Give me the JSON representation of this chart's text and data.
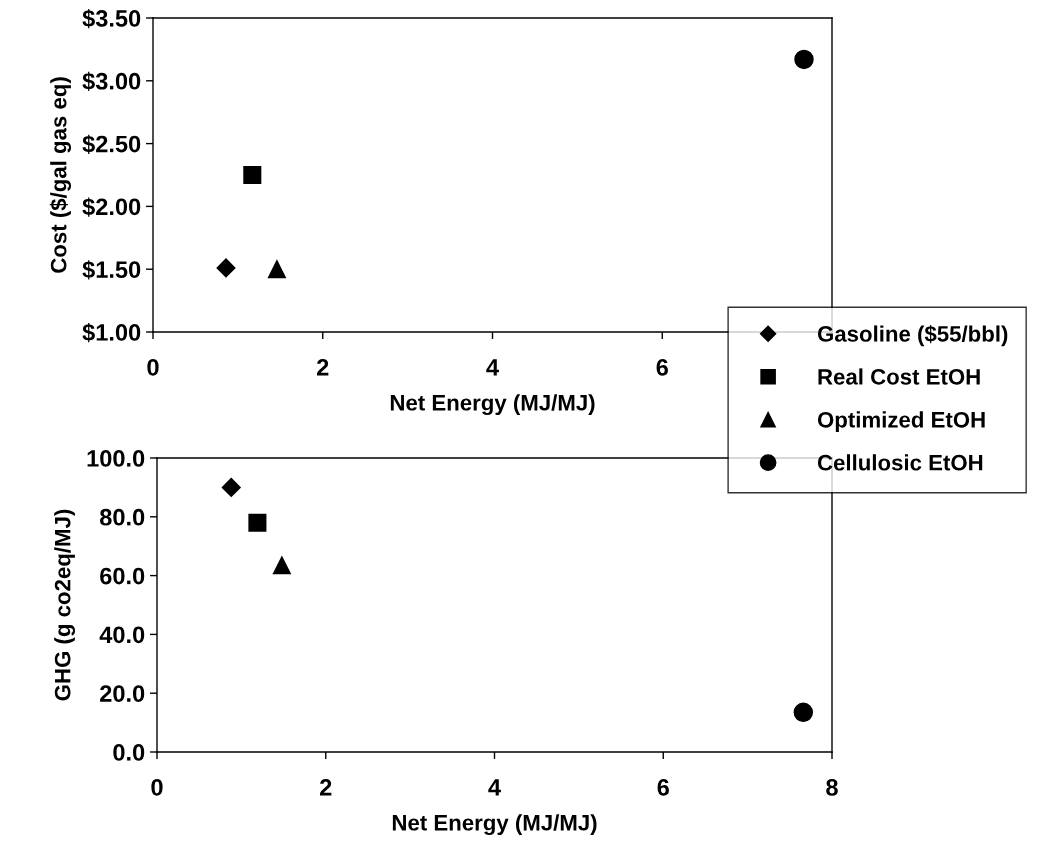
{
  "chart_data": [
    {
      "type": "scatter",
      "xlabel": "Net Energy (MJ/MJ)",
      "ylabel": "Cost ($/gal gas eq)",
      "xlim": [
        0,
        8
      ],
      "xticks": [
        0,
        2,
        4,
        6
      ],
      "ylim": [
        1.0,
        3.5
      ],
      "yticks": [
        {
          "value": 1.0,
          "label": "$1.00"
        },
        {
          "value": 1.5,
          "label": "$1.50"
        },
        {
          "value": 2.0,
          "label": "$2.00"
        },
        {
          "value": 2.5,
          "label": "$2.50"
        },
        {
          "value": 3.0,
          "label": "$3.00"
        },
        {
          "value": 3.5,
          "label": "$3.50"
        }
      ],
      "legend": "right",
      "grid": false,
      "series": [
        {
          "name": "Gasoline ($55/bbl)",
          "color": "#000000",
          "marker": "diamond",
          "x": [
            0.86
          ],
          "values": [
            1.51
          ]
        },
        {
          "name": "Real Cost EtOH",
          "color": "#000000",
          "marker": "square",
          "x": [
            1.17
          ],
          "values": [
            2.25
          ]
        },
        {
          "name": "Optimized EtOH",
          "color": "#000000",
          "marker": "triangle",
          "x": [
            1.46
          ],
          "values": [
            1.5
          ]
        },
        {
          "name": "Cellulosic EtOH",
          "color": "#000000",
          "marker": "circle",
          "x": [
            7.67
          ],
          "values": [
            3.17
          ]
        }
      ]
    },
    {
      "type": "scatter",
      "xlabel": "Net Energy (MJ/MJ)",
      "ylabel": "GHG (g co2eq/MJ)",
      "xlim": [
        0,
        8
      ],
      "xticks": [
        0,
        2,
        4,
        6,
        8
      ],
      "ylim": [
        0,
        100
      ],
      "yticks": [
        {
          "value": 0,
          "label": "0.0"
        },
        {
          "value": 20,
          "label": "20.0"
        },
        {
          "value": 40,
          "label": "40.0"
        },
        {
          "value": 60,
          "label": "60.0"
        },
        {
          "value": 80,
          "label": "80.0"
        },
        {
          "value": 100,
          "label": "100.0"
        }
      ],
      "grid": false,
      "series": [
        {
          "color": "#000000",
          "marker": "diamond",
          "x": [
            0.88
          ],
          "values": [
            90
          ]
        },
        {
          "color": "#000000",
          "marker": "square",
          "x": [
            1.19
          ],
          "values": [
            78
          ]
        },
        {
          "color": "#000000",
          "marker": "triangle",
          "x": [
            1.48
          ],
          "values": [
            63.5
          ]
        },
        {
          "color": "#000000",
          "marker": "circle",
          "x": [
            7.66
          ],
          "values": [
            13.5
          ]
        }
      ]
    }
  ]
}
